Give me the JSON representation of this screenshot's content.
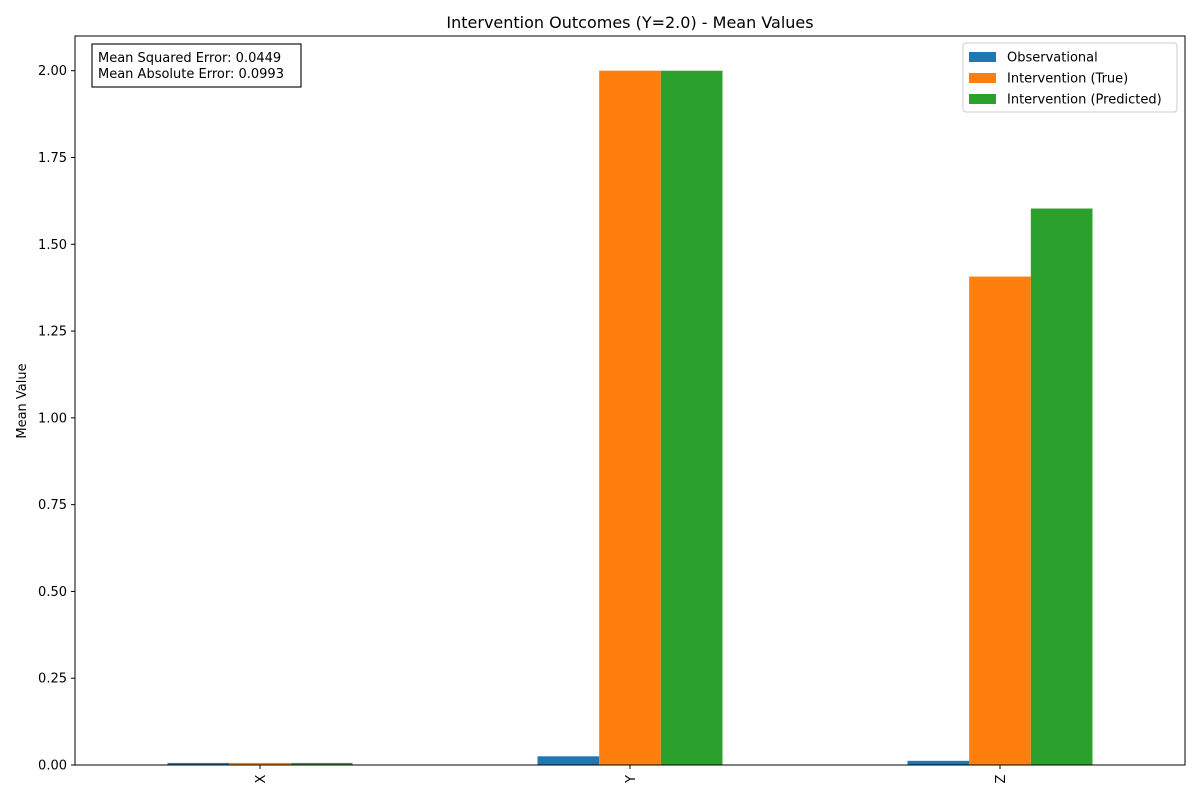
{
  "chart_data": {
    "type": "bar",
    "title": "Intervention Outcomes (Y=2.0) - Mean Values",
    "xlabel": "",
    "ylabel": "Mean Value",
    "categories": [
      "X",
      "Y",
      "Z"
    ],
    "series": [
      {
        "name": "Observational",
        "color": "#1f77b4",
        "values": [
          0.006,
          0.025,
          0.012
        ]
      },
      {
        "name": "Intervention (True)",
        "color": "#ff7f0e",
        "values": [
          0.006,
          2.0,
          1.407
        ]
      },
      {
        "name": "Intervention (Predicted)",
        "color": "#2ca02c",
        "values": [
          0.006,
          2.0,
          1.603
        ]
      }
    ],
    "ylim": [
      0,
      2.1
    ],
    "yticks": [
      0.0,
      0.25,
      0.5,
      0.75,
      1.0,
      1.25,
      1.5,
      1.75,
      2.0
    ],
    "ytick_labels": [
      "0.00",
      "0.25",
      "0.50",
      "0.75",
      "1.00",
      "1.25",
      "1.50",
      "1.75",
      "2.00"
    ],
    "grid": false,
    "legend_position": "top-right",
    "annotations": [
      "Mean Squared Error: 0.0449",
      "Mean Absolute Error: 0.0993"
    ]
  }
}
